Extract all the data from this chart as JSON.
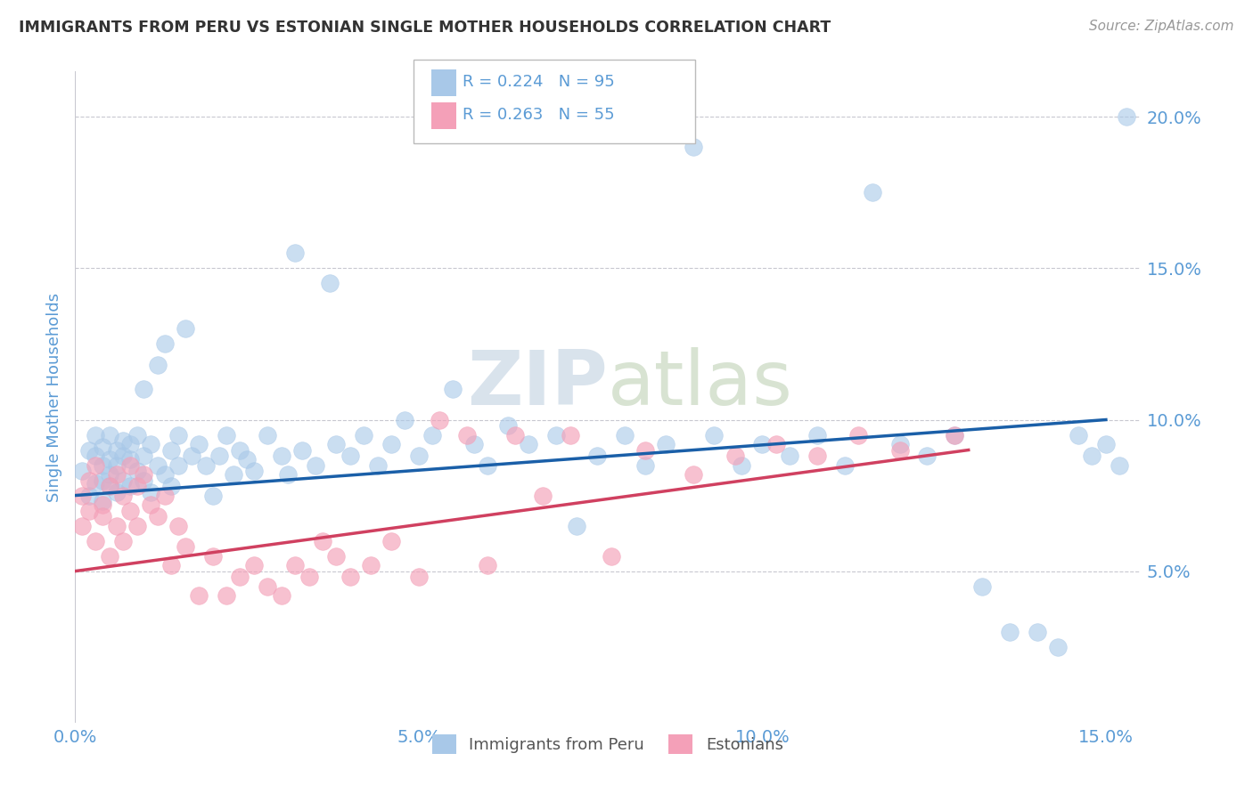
{
  "title": "IMMIGRANTS FROM PERU VS ESTONIAN SINGLE MOTHER HOUSEHOLDS CORRELATION CHART",
  "source": "Source: ZipAtlas.com",
  "ylabel": "Single Mother Households",
  "legend_label1": "Immigrants from Peru",
  "legend_label2": "Estonians",
  "R1": 0.224,
  "N1": 95,
  "R2": 0.263,
  "N2": 55,
  "xlim": [
    0.0,
    0.155
  ],
  "ylim": [
    0.0,
    0.215
  ],
  "xticks": [
    0.0,
    0.05,
    0.1,
    0.15
  ],
  "yticks": [
    0.05,
    0.1,
    0.15,
    0.2
  ],
  "color_peru": "#a8c8e8",
  "color_estonian": "#f4a0b8",
  "color_line_peru": "#1a5fa8",
  "color_line_estonian": "#d04060",
  "background": "#ffffff",
  "grid_color": "#c8c8d0",
  "title_color": "#333333",
  "source_color": "#999999",
  "axis_color": "#5b9bd5",
  "watermark_color": "#d0dce8",
  "peru_x": [
    0.001,
    0.002,
    0.002,
    0.003,
    0.003,
    0.003,
    0.004,
    0.004,
    0.004,
    0.004,
    0.005,
    0.005,
    0.005,
    0.005,
    0.006,
    0.006,
    0.006,
    0.007,
    0.007,
    0.007,
    0.008,
    0.008,
    0.008,
    0.009,
    0.009,
    0.01,
    0.01,
    0.01,
    0.011,
    0.011,
    0.012,
    0.012,
    0.013,
    0.013,
    0.014,
    0.014,
    0.015,
    0.015,
    0.016,
    0.017,
    0.018,
    0.019,
    0.02,
    0.021,
    0.022,
    0.023,
    0.024,
    0.025,
    0.026,
    0.028,
    0.03,
    0.031,
    0.032,
    0.033,
    0.035,
    0.037,
    0.038,
    0.04,
    0.042,
    0.044,
    0.046,
    0.048,
    0.05,
    0.052,
    0.055,
    0.058,
    0.06,
    0.063,
    0.066,
    0.07,
    0.073,
    0.076,
    0.08,
    0.083,
    0.086,
    0.09,
    0.093,
    0.097,
    0.1,
    0.104,
    0.108,
    0.112,
    0.116,
    0.12,
    0.124,
    0.128,
    0.132,
    0.136,
    0.14,
    0.143,
    0.146,
    0.148,
    0.15,
    0.152,
    0.153
  ],
  "peru_y": [
    0.083,
    0.09,
    0.075,
    0.088,
    0.079,
    0.095,
    0.085,
    0.091,
    0.073,
    0.08,
    0.087,
    0.082,
    0.095,
    0.078,
    0.09,
    0.085,
    0.076,
    0.093,
    0.088,
    0.08,
    0.092,
    0.087,
    0.078,
    0.095,
    0.083,
    0.11,
    0.088,
    0.08,
    0.092,
    0.076,
    0.118,
    0.085,
    0.125,
    0.082,
    0.09,
    0.078,
    0.095,
    0.085,
    0.13,
    0.088,
    0.092,
    0.085,
    0.075,
    0.088,
    0.095,
    0.082,
    0.09,
    0.087,
    0.083,
    0.095,
    0.088,
    0.082,
    0.155,
    0.09,
    0.085,
    0.145,
    0.092,
    0.088,
    0.095,
    0.085,
    0.092,
    0.1,
    0.088,
    0.095,
    0.11,
    0.092,
    0.085,
    0.098,
    0.092,
    0.095,
    0.065,
    0.088,
    0.095,
    0.085,
    0.092,
    0.19,
    0.095,
    0.085,
    0.092,
    0.088,
    0.095,
    0.085,
    0.175,
    0.092,
    0.088,
    0.095,
    0.045,
    0.03,
    0.03,
    0.025,
    0.095,
    0.088,
    0.092,
    0.085,
    0.2
  ],
  "estonian_x": [
    0.001,
    0.001,
    0.002,
    0.002,
    0.003,
    0.003,
    0.004,
    0.004,
    0.005,
    0.005,
    0.006,
    0.006,
    0.007,
    0.007,
    0.008,
    0.008,
    0.009,
    0.009,
    0.01,
    0.011,
    0.012,
    0.013,
    0.014,
    0.015,
    0.016,
    0.018,
    0.02,
    0.022,
    0.024,
    0.026,
    0.028,
    0.03,
    0.032,
    0.034,
    0.036,
    0.038,
    0.04,
    0.043,
    0.046,
    0.05,
    0.053,
    0.057,
    0.06,
    0.064,
    0.068,
    0.072,
    0.078,
    0.083,
    0.09,
    0.096,
    0.102,
    0.108,
    0.114,
    0.12,
    0.128
  ],
  "estonian_y": [
    0.075,
    0.065,
    0.08,
    0.07,
    0.06,
    0.085,
    0.072,
    0.068,
    0.078,
    0.055,
    0.082,
    0.065,
    0.075,
    0.06,
    0.085,
    0.07,
    0.065,
    0.078,
    0.082,
    0.072,
    0.068,
    0.075,
    0.052,
    0.065,
    0.058,
    0.042,
    0.055,
    0.042,
    0.048,
    0.052,
    0.045,
    0.042,
    0.052,
    0.048,
    0.06,
    0.055,
    0.048,
    0.052,
    0.06,
    0.048,
    0.1,
    0.095,
    0.052,
    0.095,
    0.075,
    0.095,
    0.055,
    0.09,
    0.082,
    0.088,
    0.092,
    0.088,
    0.095,
    0.09,
    0.095
  ]
}
